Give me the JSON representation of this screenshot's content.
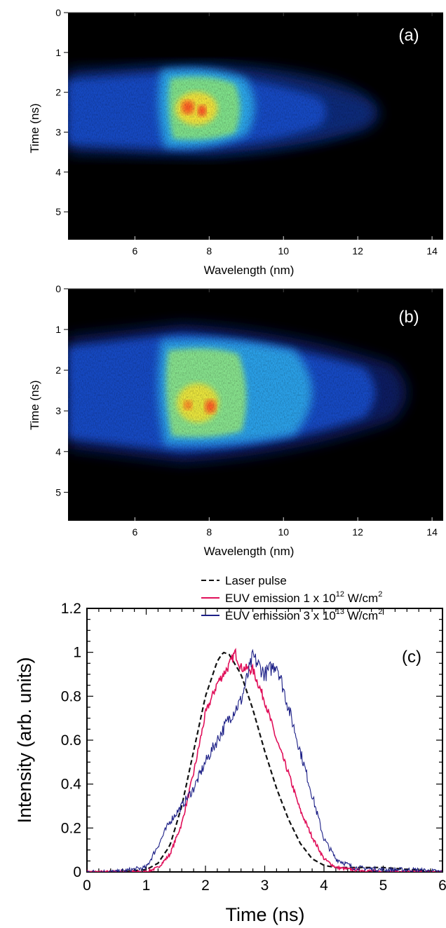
{
  "panel_a": {
    "label": "(a)",
    "ylabel": "Time (ns)",
    "xlabel": "Wavelength (nm)"
  },
  "panel_b": {
    "label": "(b)",
    "ylabel": "Time (ns)",
    "xlabel": "Wavelength (nm)"
  },
  "panel_c": {
    "label": "(c)",
    "ylabel": "Intensity (arb. units)",
    "xlabel": "Time (ns)"
  },
  "legend": {
    "laser": "Laser pulse",
    "euv1_prefix": "EUV emission 1 x 10",
    "euv1_exp": "12",
    "euv1_unit": " W/cm",
    "euv1_sq": "2",
    "euv2_prefix": "EUV emission 3 x 10",
    "euv2_exp": "13",
    "euv2_unit": " W/cm",
    "euv2_sq": "2"
  },
  "colors": {
    "laser": "#111111",
    "euv_low": "#e0105a",
    "euv_high": "#1c1f86"
  },
  "chart_data": [
    {
      "type": "heatmap",
      "label": "(a)",
      "xlabel": "Wavelength (nm)",
      "ylabel": "Time (ns)",
      "xlim": [
        4.2,
        14.3
      ],
      "ylim": [
        0,
        5.7
      ],
      "xticks": [
        6,
        8,
        10,
        12,
        14
      ],
      "yticks": [
        0,
        1,
        2,
        3,
        4,
        5
      ],
      "emission_region": {
        "wavelength": [
          4.2,
          12.8
        ],
        "time": [
          1.6,
          3.8
        ]
      },
      "peak": {
        "wavelength": [
          7.0,
          8.2
        ],
        "time": [
          2.0,
          2.9
        ]
      }
    },
    {
      "type": "heatmap",
      "label": "(b)",
      "xlabel": "Wavelength (nm)",
      "ylabel": "Time (ns)",
      "xlim": [
        4.2,
        14.3
      ],
      "ylim": [
        0,
        5.7
      ],
      "xticks": [
        6,
        8,
        10,
        12,
        14
      ],
      "yticks": [
        0,
        1,
        2,
        3,
        4,
        5
      ],
      "emission_region": {
        "wavelength": [
          4.2,
          13.2
        ],
        "time": [
          1.2,
          4.0
        ]
      },
      "peak": {
        "wavelength": [
          7.0,
          8.6
        ],
        "time": [
          2.2,
          3.6
        ]
      }
    },
    {
      "type": "line",
      "label": "(c)",
      "xlabel": "Time (ns)",
      "ylabel": "Intensity (arb. units)",
      "xlim": [
        0,
        6
      ],
      "ylim": [
        0,
        1.2
      ],
      "xticks": [
        0,
        1,
        2,
        3,
        4,
        5,
        6
      ],
      "yticks": [
        0,
        0.2,
        0.4,
        0.6,
        0.8,
        1,
        1.2
      ],
      "series": [
        {
          "name": "Laser pulse",
          "style": "dashed",
          "x": [
            0,
            0.5,
            1.0,
            1.2,
            1.4,
            1.6,
            1.8,
            2.0,
            2.2,
            2.3,
            2.4,
            2.6,
            2.8,
            3.0,
            3.2,
            3.4,
            3.6,
            3.8,
            4.0,
            4.2,
            4.5,
            5.0,
            5.5,
            6.0
          ],
          "y": [
            0,
            0,
            0.01,
            0.04,
            0.12,
            0.3,
            0.55,
            0.8,
            0.96,
            1.0,
            0.99,
            0.9,
            0.74,
            0.55,
            0.38,
            0.24,
            0.13,
            0.06,
            0.03,
            0.02,
            0.02,
            0.02,
            0.01,
            0
          ]
        },
        {
          "name": "EUV emission 1 x 10^12 W/cm^2",
          "x": [
            0,
            0.5,
            1.0,
            1.2,
            1.4,
            1.6,
            1.8,
            2.0,
            2.2,
            2.4,
            2.5,
            2.6,
            2.8,
            3.0,
            3.2,
            3.4,
            3.6,
            3.8,
            4.0,
            4.2,
            4.5,
            5.0,
            6.0
          ],
          "y": [
            0,
            0,
            0,
            0.02,
            0.08,
            0.22,
            0.45,
            0.72,
            0.86,
            0.94,
            1.0,
            0.93,
            0.92,
            0.78,
            0.6,
            0.45,
            0.28,
            0.16,
            0.06,
            0.02,
            0.01,
            0,
            0
          ]
        },
        {
          "name": "EUV emission 3 x 10^13 W/cm^2",
          "x": [
            0,
            0.5,
            1.0,
            1.2,
            1.4,
            1.6,
            1.8,
            2.0,
            2.2,
            2.4,
            2.6,
            2.8,
            3.0,
            3.2,
            3.4,
            3.6,
            3.8,
            4.0,
            4.2,
            4.5,
            5.0,
            5.5,
            6.0
          ],
          "y": [
            0,
            0,
            0.02,
            0.12,
            0.23,
            0.3,
            0.38,
            0.5,
            0.6,
            0.7,
            0.78,
            0.98,
            0.9,
            0.95,
            0.75,
            0.55,
            0.35,
            0.15,
            0.06,
            0.02,
            0.01,
            0.01,
            0
          ]
        }
      ]
    }
  ]
}
